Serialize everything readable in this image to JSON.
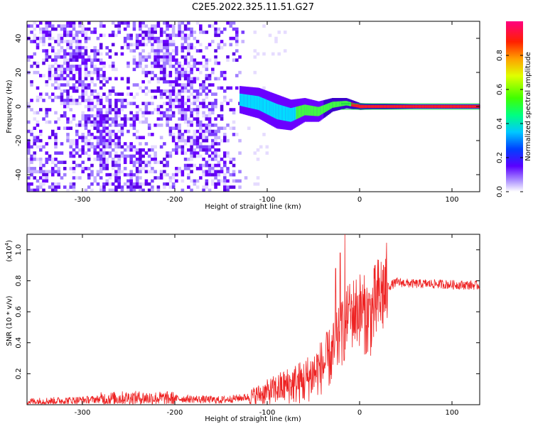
{
  "title": "C2E5.2022.325.11.51.G27",
  "colors": {
    "spectrogram": "#6a00ff",
    "snr_line": "#ee2222",
    "carrier": "#00cc44"
  },
  "chart_data": [
    {
      "type": "heatmap",
      "xlabel": "Height of straight line (km)",
      "ylabel": "Frequency (Hz)",
      "xlim": [
        -360,
        130
      ],
      "ylim": [
        -50,
        50
      ],
      "xticks": [
        -300,
        -200,
        -100,
        0,
        100
      ],
      "yticks": [
        -40,
        -20,
        0,
        20,
        40
      ],
      "colorbar": {
        "label": "Normalized spectral amplitude",
        "range": [
          0.0,
          1.0
        ],
        "ticks": [
          0.0,
          0.2,
          0.4,
          0.6,
          0.8
        ]
      },
      "carrier_track": {
        "x": [
          -130,
          -110,
          -90,
          -75,
          -60,
          -45,
          -30,
          -15,
          0,
          20,
          60,
          130
        ],
        "y": [
          4,
          2,
          -3,
          -5,
          -2,
          -3,
          1,
          2,
          0,
          0,
          0,
          0
        ],
        "width_hz": [
          8,
          9,
          10,
          9,
          7,
          6,
          4,
          3,
          2,
          1.5,
          1.2,
          1.2
        ]
      },
      "noise_region_x": [
        -360,
        -120
      ]
    },
    {
      "type": "line",
      "xlabel": "Height of straight line (km)",
      "ylabel": "SNR (10 * v/v)",
      "y_multiplier": "(x10",
      "y_multiplier_exp": "4",
      "xlim": [
        -360,
        130
      ],
      "ylim": [
        0,
        1.1
      ],
      "xticks": [
        -300,
        -200,
        -100,
        0,
        100
      ],
      "yticks": [
        0.2,
        0.4,
        0.6,
        0.8,
        1.0
      ],
      "envelope": {
        "x": [
          -360,
          -300,
          -250,
          -200,
          -150,
          -120,
          -100,
          -80,
          -60,
          -40,
          -30,
          -20,
          -10,
          0,
          10,
          20,
          30,
          40,
          60,
          80,
          100,
          130
        ],
        "y": [
          0.02,
          0.03,
          0.045,
          0.04,
          0.03,
          0.05,
          0.08,
          0.12,
          0.15,
          0.25,
          0.32,
          0.45,
          0.58,
          0.62,
          0.55,
          0.68,
          0.76,
          0.79,
          0.78,
          0.78,
          0.775,
          0.77
        ]
      },
      "spikes": [
        {
          "x": -26,
          "y": 0.88
        },
        {
          "x": -21,
          "y": 0.98
        },
        {
          "x": -16,
          "y": 1.1
        },
        {
          "x": -12,
          "y": 0.65
        },
        {
          "x": 10,
          "y": 0.72
        }
      ]
    }
  ]
}
